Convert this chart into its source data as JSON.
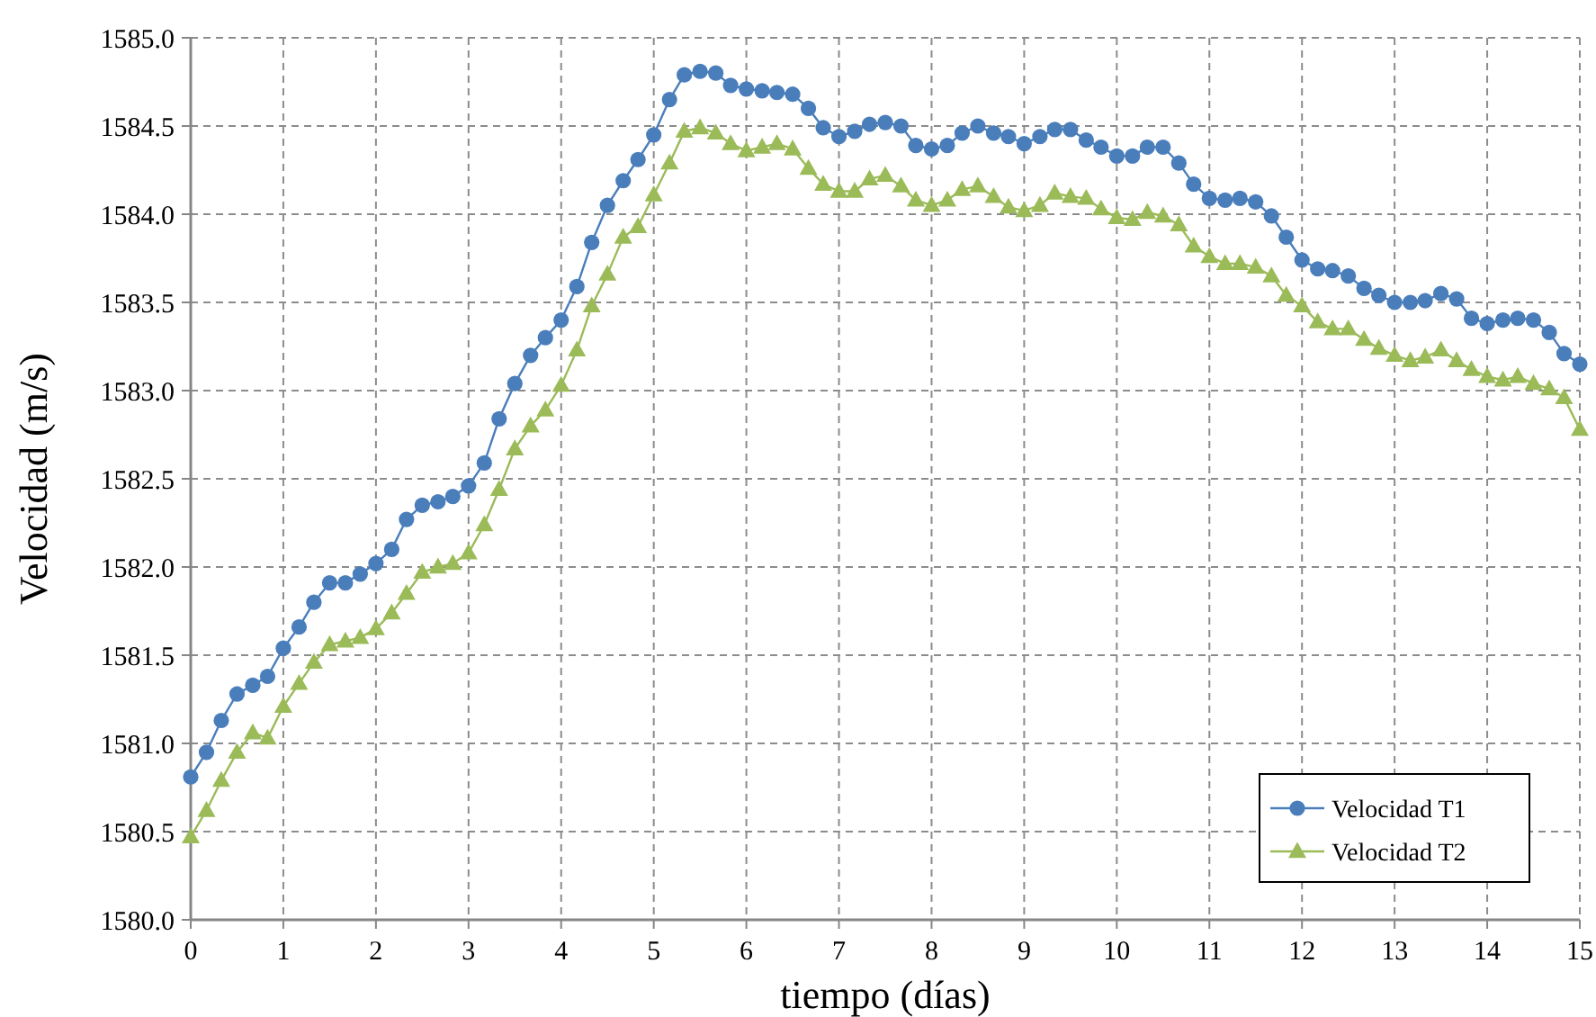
{
  "chart_data": {
    "type": "line",
    "xlabel": "tiempo (días)",
    "ylabel": "Velocidad (m/s)",
    "x": [
      0,
      0.17,
      0.33,
      0.5,
      0.67,
      0.83,
      1,
      1.17,
      1.33,
      1.5,
      1.67,
      1.83,
      2,
      2.17,
      2.33,
      2.5,
      2.67,
      2.83,
      3,
      3.17,
      3.33,
      3.5,
      3.67,
      3.83,
      4,
      4.17,
      4.33,
      4.5,
      4.67,
      4.83,
      5,
      5.17,
      5.33,
      5.5,
      5.67,
      5.83,
      6,
      6.17,
      6.33,
      6.5,
      6.67,
      6.83,
      7,
      7.17,
      7.33,
      7.5,
      7.67,
      7.83,
      8,
      8.17,
      8.33,
      8.5,
      8.67,
      8.83,
      9,
      9.17,
      9.33,
      9.5,
      9.67,
      9.83,
      10,
      10.17,
      10.33,
      10.5,
      10.67,
      10.83,
      11,
      11.17,
      11.33,
      11.5,
      11.67,
      11.83,
      12,
      12.17,
      12.33,
      12.5,
      12.67,
      12.83,
      13,
      13.17,
      13.33,
      13.5,
      13.67,
      13.83,
      14,
      14.17,
      14.33,
      14.5,
      14.67,
      14.83,
      15
    ],
    "series": [
      {
        "name": "Velocidad T1",
        "color": "#4a7ebb",
        "marker": "circle",
        "values": [
          1580.81,
          1580.95,
          1581.13,
          1581.28,
          1581.33,
          1581.38,
          1581.54,
          1581.66,
          1581.8,
          1581.91,
          1581.91,
          1581.96,
          1582.02,
          1582.1,
          1582.27,
          1582.35,
          1582.37,
          1582.4,
          1582.46,
          1582.59,
          1582.84,
          1583.04,
          1583.2,
          1583.3,
          1583.4,
          1583.59,
          1583.84,
          1584.05,
          1584.19,
          1584.31,
          1584.45,
          1584.65,
          1584.79,
          1584.81,
          1584.8,
          1584.73,
          1584.71,
          1584.7,
          1584.69,
          1584.68,
          1584.6,
          1584.49,
          1584.44,
          1584.47,
          1584.51,
          1584.52,
          1584.5,
          1584.39,
          1584.37,
          1584.39,
          1584.46,
          1584.5,
          1584.46,
          1584.44,
          1584.4,
          1584.44,
          1584.48,
          1584.48,
          1584.42,
          1584.38,
          1584.33,
          1584.33,
          1584.38,
          1584.38,
          1584.29,
          1584.17,
          1584.09,
          1584.08,
          1584.09,
          1584.07,
          1583.99,
          1583.87,
          1583.74,
          1583.69,
          1583.68,
          1583.65,
          1583.58,
          1583.54,
          1583.5,
          1583.5,
          1583.51,
          1583.55,
          1583.52,
          1583.41,
          1583.38,
          1583.4,
          1583.41,
          1583.4,
          1583.33,
          1583.21,
          1583.15
        ]
      },
      {
        "name": "Velocidad T2",
        "color": "#9bbb59",
        "marker": "triangle",
        "values": [
          1580.47,
          1580.62,
          1580.79,
          1580.95,
          1581.06,
          1581.03,
          1581.21,
          1581.34,
          1581.46,
          1581.56,
          1581.58,
          1581.6,
          1581.65,
          1581.74,
          1581.85,
          1581.97,
          1582,
          1582.02,
          1582.08,
          1582.24,
          1582.44,
          1582.67,
          1582.8,
          1582.89,
          1583.03,
          1583.23,
          1583.48,
          1583.66,
          1583.87,
          1583.93,
          1584.11,
          1584.29,
          1584.47,
          1584.49,
          1584.46,
          1584.4,
          1584.36,
          1584.38,
          1584.4,
          1584.37,
          1584.26,
          1584.17,
          1584.13,
          1584.13,
          1584.2,
          1584.22,
          1584.16,
          1584.08,
          1584.05,
          1584.08,
          1584.14,
          1584.16,
          1584.1,
          1584.04,
          1584.02,
          1584.05,
          1584.12,
          1584.1,
          1584.09,
          1584.03,
          1583.98,
          1583.97,
          1584.01,
          1583.99,
          1583.94,
          1583.82,
          1583.76,
          1583.72,
          1583.72,
          1583.7,
          1583.65,
          1583.54,
          1583.48,
          1583.39,
          1583.35,
          1583.35,
          1583.29,
          1583.24,
          1583.2,
          1583.17,
          1583.19,
          1583.23,
          1583.17,
          1583.12,
          1583.08,
          1583.06,
          1583.08,
          1583.04,
          1583.01,
          1582.96,
          1582.78
        ]
      }
    ],
    "xlim": [
      0,
      15
    ],
    "xticks": [
      0,
      1,
      2,
      3,
      4,
      5,
      6,
      7,
      8,
      9,
      10,
      11,
      12,
      13,
      14,
      15
    ],
    "ylim": [
      1580,
      1585
    ],
    "yticks": [
      {
        "value": 1580,
        "label": "1580.0"
      },
      {
        "value": 1580.5,
        "label": "1580.5"
      },
      {
        "value": 1581,
        "label": "1581.0"
      },
      {
        "value": 1581.5,
        "label": "1581.5"
      },
      {
        "value": 1582,
        "label": "1582.0"
      },
      {
        "value": 1582.5,
        "label": "1582.5"
      },
      {
        "value": 1583,
        "label": "1583.0"
      },
      {
        "value": 1583.5,
        "label": "1583.5"
      },
      {
        "value": 1584,
        "label": "1584.0"
      },
      {
        "value": 1584.5,
        "label": "1584.5"
      },
      {
        "value": 1585,
        "label": "1585.0"
      }
    ],
    "grid": true,
    "legend": "bottom right",
    "line_style": "solid"
  }
}
